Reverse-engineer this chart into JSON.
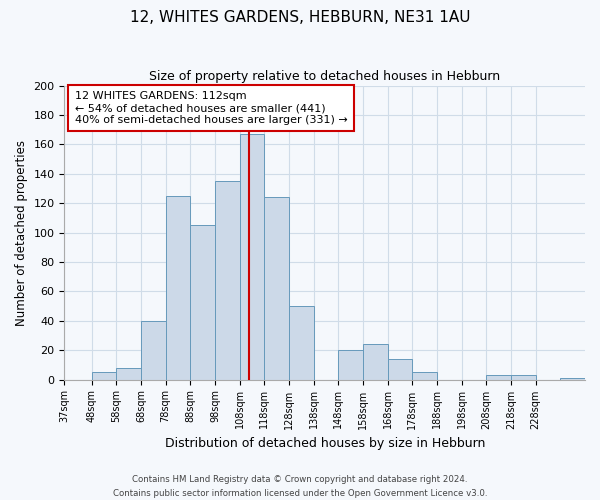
{
  "title1": "12, WHITES GARDENS, HEBBURN, NE31 1AU",
  "title2": "Size of property relative to detached houses in Hebburn",
  "xlabel": "Distribution of detached houses by size in Hebburn",
  "ylabel": "Number of detached properties",
  "bar_edges": [
    37,
    48,
    58,
    68,
    78,
    88,
    98,
    108,
    118,
    128,
    138,
    148,
    158,
    168,
    178,
    188,
    198,
    208,
    218,
    228,
    238
  ],
  "bar_heights": [
    0,
    5,
    8,
    40,
    125,
    105,
    135,
    167,
    124,
    50,
    0,
    20,
    24,
    14,
    5,
    0,
    0,
    3,
    3,
    0,
    1
  ],
  "bar_color": "#ccd9e8",
  "bar_edgecolor": "#6699bb",
  "property_line_x": 112,
  "property_line_color": "#cc0000",
  "annotation_line1": "12 WHITES GARDENS: 112sqm",
  "annotation_line2": "← 54% of detached houses are smaller (441)",
  "annotation_line3": "40% of semi-detached houses are larger (331) →",
  "ylim": [
    0,
    200
  ],
  "yticks": [
    0,
    20,
    40,
    60,
    80,
    100,
    120,
    140,
    160,
    180,
    200
  ],
  "footer_line1": "Contains HM Land Registry data © Crown copyright and database right 2024.",
  "footer_line2": "Contains public sector information licensed under the Open Government Licence v3.0.",
  "bg_color": "#f5f8fc",
  "grid_color": "#d0dce8"
}
